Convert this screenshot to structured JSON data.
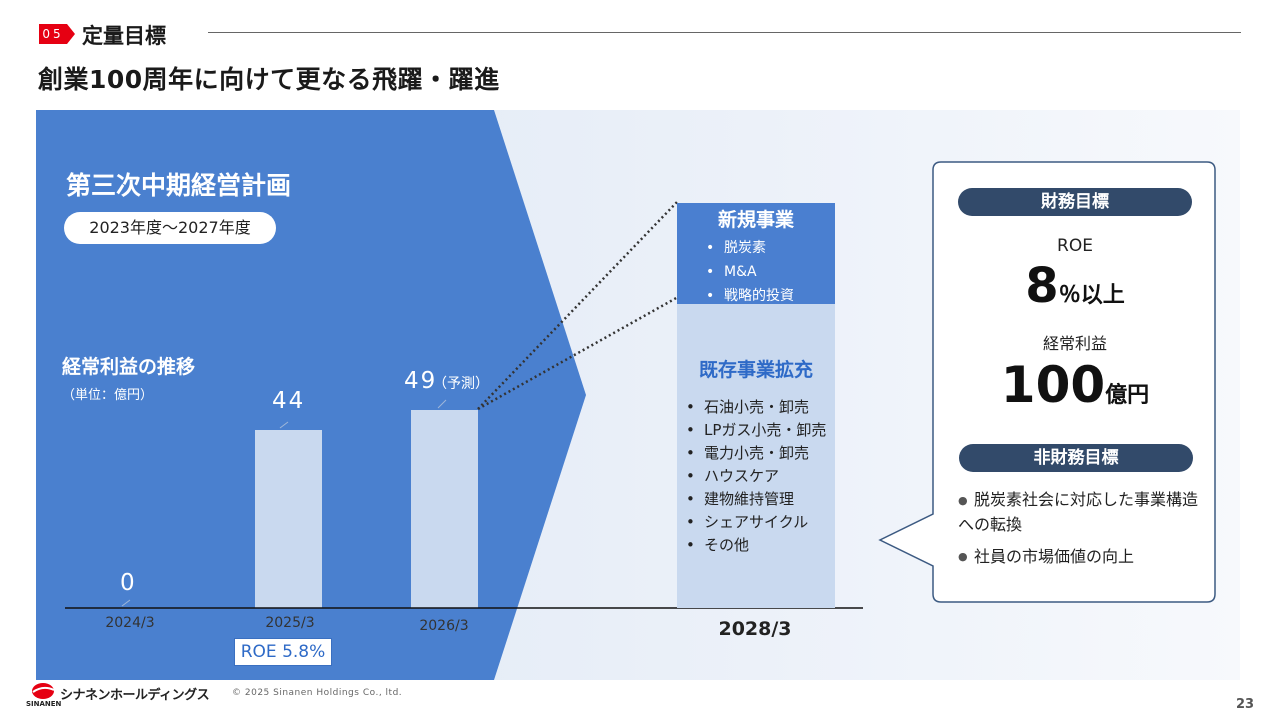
{
  "header": {
    "section_number": "05",
    "section_title": "定量目標",
    "main_title": "創業100周年に向けて更なる飛躍・躍進"
  },
  "plan": {
    "title": "第三次中期経営計画",
    "period": "2023年度～2027年度"
  },
  "chart": {
    "title": "経常利益の推移",
    "unit": "（単位：億円）",
    "roe_note": "ROE 5.8%",
    "target_year": "2028/3"
  },
  "chart_data": {
    "type": "bar",
    "title": "経常利益の推移",
    "ylabel": "（単位：億円）",
    "categories": [
      "2024/3",
      "2025/3",
      "2026/3"
    ],
    "values": [
      0,
      44,
      49
    ],
    "value_labels": [
      "0",
      "44",
      "49"
    ],
    "value_notes": [
      "",
      "",
      "（予測）"
    ],
    "ylim": [
      0,
      100
    ],
    "grid": false
  },
  "new_business": {
    "title": "新規事業",
    "items": [
      "脱炭素",
      "M&A",
      "戦略的投資"
    ]
  },
  "existing_business": {
    "title": "既存事業拡充",
    "items": [
      "石油小売・卸売",
      "LPガス小売・卸売",
      "電力小売・卸売",
      "ハウスケア",
      "建物維持管理",
      "シェアサイクル",
      "その他"
    ]
  },
  "targets": {
    "financial_label": "財務目標",
    "roe_label": "ROE",
    "roe_value": "8",
    "roe_unit": "％以上",
    "ordinary_label": "経常利益",
    "ordinary_value": "100",
    "ordinary_unit": "億円",
    "nonfinancial_label": "非財務目標",
    "nonfinancial_items": [
      "脱炭素社会に対応した事業構造への転換",
      "社員の市場価値の向上"
    ]
  },
  "footer": {
    "company": "シナネンホールディングス",
    "company_en": "SINANEN",
    "copyright": "© 2025 Sinanen Holdings Co., ltd.",
    "page": "23"
  },
  "colors": {
    "accent_red": "#e60012",
    "primary_blue": "#4a7fd0",
    "light_blue": "#c9d9ef",
    "navy_pill": "#324a6a"
  }
}
